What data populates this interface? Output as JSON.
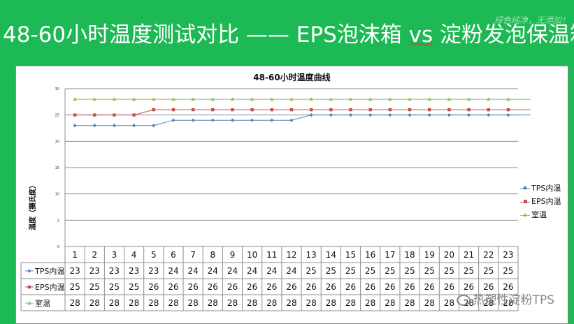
{
  "slide": {
    "title_main": "48-60小时温度测试对比 —— EPS泡沫箱 ",
    "title_vs": "vs",
    "title_tail": " 淀粉发泡保温箱",
    "corner_watermark": "绿色纯净，无添加！",
    "bottom_watermark": "热塑性淀粉TPS"
  },
  "colors": {
    "background": "#1db954",
    "tps": "#4f81bd",
    "eps": "#c0504d",
    "room": "#9bbb59"
  },
  "chart_data": {
    "type": "line",
    "title": "48-60小时温度曲线",
    "ylabel": "温度（摄氏度）",
    "xlabel": "",
    "ylim": [
      0,
      30
    ],
    "yticks": [
      0,
      5,
      10,
      15,
      20,
      25,
      30
    ],
    "grid": true,
    "legend_position": "right",
    "categories": [
      "1",
      "2",
      "3",
      "4",
      "5",
      "6",
      "7",
      "8",
      "9",
      "10",
      "11",
      "12",
      "13",
      "14",
      "15",
      "16",
      "17",
      "18",
      "19",
      "20",
      "21",
      "22",
      "23"
    ],
    "series": [
      {
        "name": "TPS内温",
        "color": "#4f81bd",
        "marker": "diamond",
        "values": [
          23,
          23,
          23,
          23,
          23,
          24,
          24,
          24,
          24,
          24,
          24,
          24,
          25,
          25,
          25,
          25,
          25,
          25,
          25,
          25,
          25,
          25,
          25
        ]
      },
      {
        "name": "EPS内温",
        "color": "#c0504d",
        "marker": "square",
        "values": [
          25,
          25,
          25,
          25,
          26,
          26,
          26,
          26,
          26,
          26,
          26,
          26,
          26,
          26,
          26,
          26,
          26,
          26,
          26,
          26,
          26,
          26,
          26
        ]
      },
      {
        "name": "室温",
        "color": "#9bbb59",
        "marker": "triangle",
        "values": [
          28,
          28,
          28,
          28,
          28,
          28,
          28,
          28,
          28,
          28,
          28,
          28,
          28,
          28,
          28,
          28,
          28,
          28,
          28,
          28,
          28,
          28,
          28
        ]
      }
    ]
  }
}
